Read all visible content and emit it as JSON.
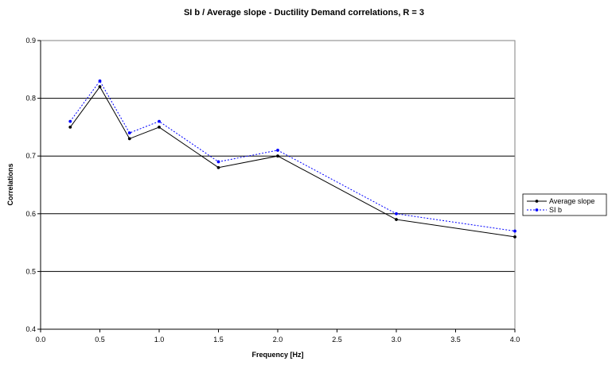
{
  "chart_data": {
    "type": "line",
    "title": "SI b / Average slope - Ductility Demand correlations, R = 3",
    "xlabel": "Frequency [Hz]",
    "ylabel": "Correlations",
    "xlim": [
      0.0,
      4.0
    ],
    "ylim": [
      0.4,
      0.9
    ],
    "xticks": [
      "0.0",
      "0.5",
      "1.0",
      "1.5",
      "2.0",
      "2.5",
      "3.0",
      "3.5",
      "4.0"
    ],
    "yticks": [
      "0.4",
      "0.5",
      "0.6",
      "0.7",
      "0.8",
      "0.9"
    ],
    "grid": "horizontal",
    "legend_position": "right",
    "x": [
      0.25,
      0.5,
      0.75,
      1.0,
      1.5,
      2.0,
      3.0,
      4.0
    ],
    "series": [
      {
        "name": "Average slope",
        "values": [
          0.75,
          0.82,
          0.73,
          0.75,
          0.68,
          0.7,
          0.59,
          0.56
        ],
        "color": "#000000",
        "line_style": "solid"
      },
      {
        "name": "SI b",
        "values": [
          0.76,
          0.83,
          0.74,
          0.76,
          0.69,
          0.71,
          0.6,
          0.57
        ],
        "color": "#0000ff",
        "line_style": "dotted"
      }
    ]
  }
}
